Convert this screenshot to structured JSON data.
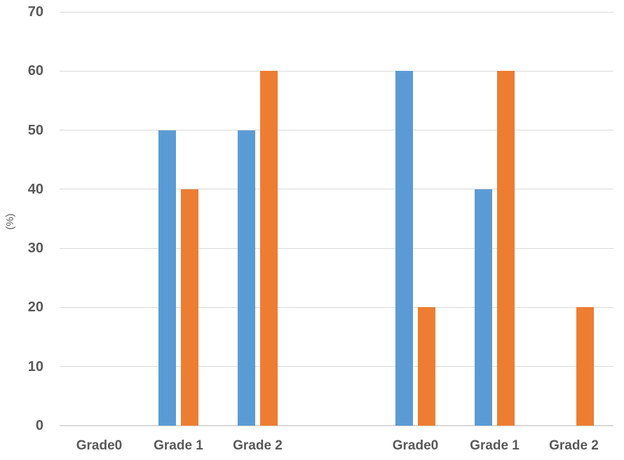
{
  "chart_data": {
    "type": "bar",
    "title": "",
    "xlabel": "",
    "ylabel": "(%)",
    "ylim": [
      0,
      70
    ],
    "yticks": [
      0,
      10,
      20,
      30,
      40,
      50,
      60,
      70
    ],
    "grid": true,
    "legend": "none",
    "categories": [
      "Grade0",
      "Grade 1",
      "Grade 2",
      "",
      "Grade0",
      "Grade 1",
      "Grade 2"
    ],
    "series": [
      {
        "name": "blue",
        "color": "#5B9BD5",
        "values": [
          0,
          50,
          50,
          null,
          60,
          40,
          0
        ]
      },
      {
        "name": "orange",
        "color": "#ED7D31",
        "values": [
          0,
          40,
          60,
          null,
          20,
          60,
          20
        ]
      }
    ]
  },
  "colors": {
    "gridline": "#D9D9D9",
    "axis_line": "#D9D9D9",
    "tick_label": "#595959"
  }
}
